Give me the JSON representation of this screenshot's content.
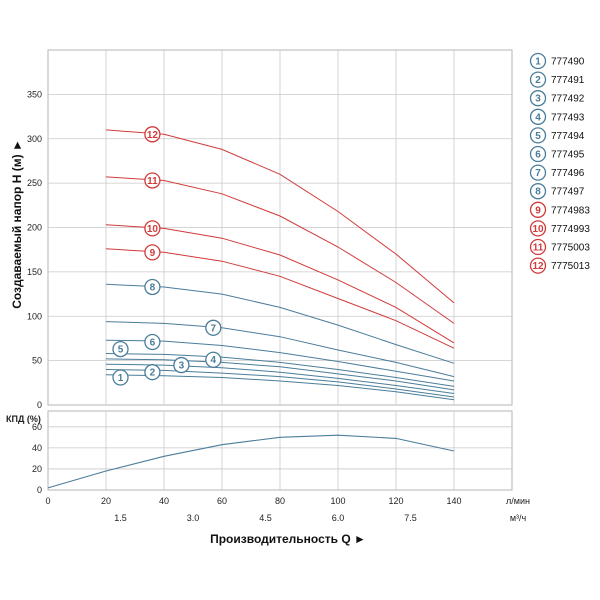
{
  "chart_data": {
    "type": "line",
    "title": "",
    "xlabel": "Производительность Q ►",
    "ylabel": "Создаваемый напор H (м) ►",
    "x_unit_primary": "л/мин",
    "x_unit_secondary": "м³/ч",
    "xlim": [
      0,
      160
    ],
    "x_ticks_primary": [
      "0",
      "20",
      "40",
      "60",
      "80",
      "100",
      "120",
      "140"
    ],
    "x_ticks_secondary": [
      "1.5",
      "3.0",
      "4.5",
      "6.0",
      "7.5"
    ],
    "head": {
      "ylim": [
        0,
        400
      ],
      "y_ticks": [
        "0",
        "50",
        "100",
        "150",
        "200",
        "250",
        "300",
        "350"
      ],
      "x": [
        20,
        40,
        60,
        80,
        100,
        120,
        140
      ],
      "series": [
        {
          "name": "777490",
          "label": "1",
          "color": "#4a7d9a",
          "values": [
            34,
            33,
            31,
            27,
            22,
            15,
            6
          ]
        },
        {
          "name": "777491",
          "label": "2",
          "color": "#4a7d9a",
          "values": [
            40,
            39,
            36,
            32,
            26,
            18,
            9
          ]
        },
        {
          "name": "777492",
          "label": "3",
          "color": "#4a7d9a",
          "values": [
            46,
            45,
            42,
            37,
            30,
            22,
            13
          ]
        },
        {
          "name": "777493",
          "label": "4",
          "color": "#4a7d9a",
          "values": [
            52,
            51,
            48,
            43,
            35,
            27,
            17
          ]
        },
        {
          "name": "777494",
          "label": "5",
          "color": "#4a7d9a",
          "values": [
            58,
            57,
            54,
            48,
            40,
            31,
            21
          ]
        },
        {
          "name": "777495",
          "label": "6",
          "color": "#4a7d9a",
          "values": [
            73,
            72,
            67,
            59,
            49,
            38,
            27
          ]
        },
        {
          "name": "777496",
          "label": "7",
          "color": "#4a7d9a",
          "values": [
            94,
            92,
            87,
            77,
            62,
            48,
            32
          ]
        },
        {
          "name": "777497",
          "label": "8",
          "color": "#4a7d9a",
          "values": [
            136,
            133,
            125,
            110,
            90,
            68,
            47
          ]
        },
        {
          "name": "7774983",
          "label": "9",
          "color": "#d23a3a",
          "values": [
            176,
            172,
            162,
            145,
            120,
            95,
            64
          ]
        },
        {
          "name": "7774993",
          "label": "10",
          "color": "#d23a3a",
          "values": [
            203,
            199,
            188,
            169,
            141,
            110,
            70
          ]
        },
        {
          "name": "7775003",
          "label": "11",
          "color": "#d23a3a",
          "values": [
            257,
            253,
            238,
            213,
            178,
            138,
            92
          ]
        },
        {
          "name": "7775013",
          "label": "12",
          "color": "#d23a3a",
          "values": [
            310,
            305,
            288,
            260,
            218,
            170,
            115
          ]
        }
      ],
      "markers": [
        {
          "label": "1",
          "x": 25,
          "y": 31
        },
        {
          "label": "2",
          "x": 36,
          "y": 37
        },
        {
          "label": "3",
          "x": 46,
          "y": 45
        },
        {
          "label": "4",
          "x": 57,
          "y": 51
        },
        {
          "label": "5",
          "x": 25,
          "y": 63
        },
        {
          "label": "6",
          "x": 36,
          "y": 71
        },
        {
          "label": "7",
          "x": 57,
          "y": 87
        },
        {
          "label": "8",
          "x": 36,
          "y": 133
        },
        {
          "label": "9",
          "x": 36,
          "y": 172
        },
        {
          "label": "10",
          "x": 36,
          "y": 199
        },
        {
          "label": "11",
          "x": 36,
          "y": 253
        },
        {
          "label": "12",
          "x": 36,
          "y": 305
        }
      ]
    },
    "efficiency": {
      "ylabel": "КПД (%)",
      "ylim": [
        0,
        75
      ],
      "y_ticks": [
        "0",
        "20",
        "40",
        "60"
      ],
      "color": "#4a7d9a",
      "x": [
        0,
        20,
        40,
        60,
        80,
        100,
        120,
        140
      ],
      "values": [
        2,
        18,
        32,
        43,
        50,
        52,
        49,
        37
      ]
    }
  }
}
